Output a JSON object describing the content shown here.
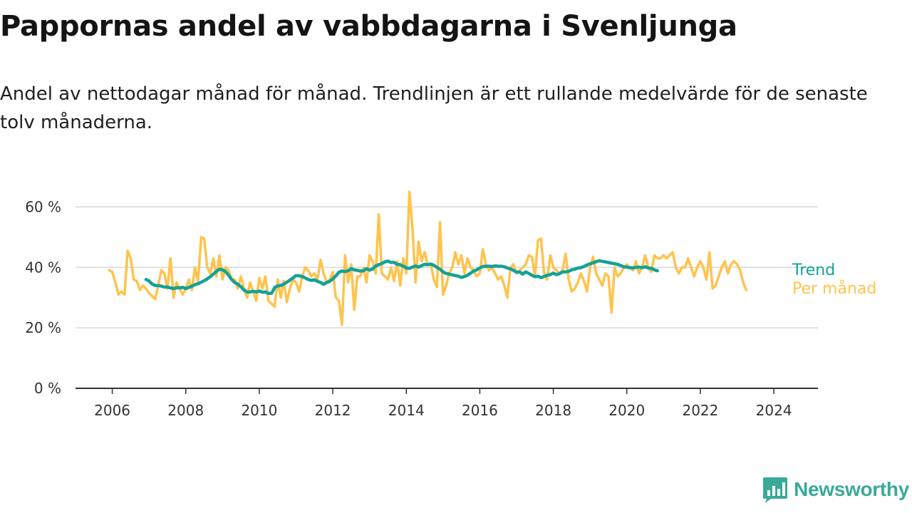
{
  "title": "Pappornas andel av vabbdagarna i Svenljunga",
  "subtitle": "Andel av nettodagar månad för månad. Trendlinjen är ett rullande medelvärde för de senaste tolv månaderna.",
  "brand": {
    "name": "Newsworthy",
    "color": "#3aa99a"
  },
  "colors": {
    "monthly": "#ffc34d",
    "trend": "#14a197",
    "grid": "#d9d9d9",
    "axis": "#333333"
  },
  "chart_data": {
    "type": "line",
    "x_unit": "year (decimal, monthly points)",
    "y_unit": "%",
    "ylim": [
      0,
      70
    ],
    "xlim": [
      2005.0,
      2025.2
    ],
    "y_ticks": [
      0,
      20,
      40,
      60
    ],
    "y_tick_labels": [
      "0 %",
      "20 %",
      "40 %",
      "60 %"
    ],
    "x_ticks": [
      2006,
      2008,
      2010,
      2012,
      2014,
      2016,
      2018,
      2020,
      2022,
      2024
    ],
    "x_tick_labels": [
      "2006",
      "2008",
      "2010",
      "2012",
      "2014",
      "2016",
      "2018",
      "2020",
      "2022",
      "2024"
    ],
    "grid": "horizontal",
    "legend": "direct labels at line ends (right)",
    "series": [
      {
        "name": "Per månad",
        "color": "#ffc34d",
        "x_start": 2005.917,
        "x_step": 0.08333,
        "values": [
          39,
          38.5,
          35,
          31,
          32,
          31,
          45.5,
          43,
          36,
          35.5,
          32.5,
          34,
          33,
          31.5,
          30.5,
          29.5,
          34,
          39,
          38,
          33,
          43,
          30,
          35,
          33,
          31,
          33,
          36,
          32.5,
          40,
          35.5,
          50,
          49.5,
          40,
          38,
          43,
          37,
          44,
          36,
          40,
          39,
          36,
          36,
          33,
          37,
          33,
          30,
          35,
          32,
          29,
          36.5,
          33,
          37,
          29,
          28,
          27,
          36,
          30,
          35.5,
          28.5,
          33,
          36,
          35,
          32,
          37,
          40,
          39,
          37,
          38,
          36,
          42.5,
          38,
          35,
          36,
          38.5,
          30,
          29,
          21,
          44,
          35,
          41,
          26,
          37,
          37,
          40,
          35,
          44,
          42,
          38,
          57.5,
          38,
          37,
          36,
          40,
          35.5,
          42,
          34,
          43,
          38,
          65,
          53,
          35,
          48.5,
          42,
          45,
          41,
          41,
          36,
          33.5,
          55,
          31,
          34,
          38,
          40,
          45,
          41,
          44,
          38,
          43,
          40,
          39,
          37,
          38,
          46,
          41,
          39,
          40,
          38,
          36,
          37,
          34,
          30,
          40,
          41,
          38,
          39,
          40,
          41,
          44,
          43.5,
          37,
          49,
          49.5,
          38,
          36,
          44,
          40,
          39,
          38,
          39,
          44.5,
          36,
          32,
          33,
          35,
          38,
          35.5,
          32,
          40,
          43.5,
          38,
          36,
          34,
          38,
          37,
          25,
          40,
          37,
          38,
          40,
          41,
          40,
          39,
          42,
          38,
          40,
          44,
          40,
          38.5,
          44,
          43,
          43,
          44,
          43,
          44,
          45,
          40,
          38,
          40,
          40,
          43,
          40,
          37,
          40,
          42,
          40,
          36,
          45,
          33,
          34,
          37,
          40,
          42,
          38,
          41,
          42,
          41,
          39,
          35,
          32.5
        ]
      },
      {
        "name": "Trend",
        "color": "#14a197",
        "x_start": 2006.917,
        "x_step": 0.08333,
        "values": [
          36,
          35.5,
          34.5,
          34,
          34,
          33.8,
          33.5,
          33.5,
          33.2,
          33,
          33.3,
          33.2,
          33.4,
          33,
          33.4,
          33.8,
          34.3,
          34.6,
          35.1,
          35.6,
          36.2,
          36.9,
          37.8,
          38.7,
          39.4,
          39.2,
          38.6,
          37.4,
          36,
          35,
          34.4,
          33.6,
          32.5,
          31.9,
          31.9,
          32.1,
          31.9,
          32.2,
          31.8,
          31.9,
          31.4,
          31.4,
          33.3,
          33.9,
          34,
          34.5,
          35.1,
          35.8,
          36.5,
          37.3,
          37.2,
          37,
          36.5,
          36,
          35.7,
          35.9,
          35.4,
          35,
          34.4,
          35,
          35.4,
          36.2,
          37.2,
          38.4,
          38.8,
          38.6,
          38.9,
          39.6,
          39.2,
          39,
          38.8,
          38.9,
          39.6,
          39.1,
          39.5,
          40.5,
          40.9,
          41.3,
          41.8,
          42.1,
          41.6,
          41.7,
          41,
          40.9,
          40.4,
          39.8,
          39.7,
          40.1,
          40.5,
          40.1,
          40.6,
          41,
          40.9,
          41.1,
          40.7,
          40,
          39.4,
          38.5,
          38,
          37.8,
          37.5,
          37.3,
          37.1,
          36.7,
          37,
          37.4,
          38.1,
          38.8,
          39.2,
          39.8,
          40.3,
          40.4,
          40.4,
          40.3,
          40.5,
          40.4,
          40.4,
          40.2,
          39.8,
          39.5,
          39,
          38.4,
          38.5,
          37.8,
          38.5,
          38,
          37.4,
          36.9,
          37.1,
          36.6,
          37,
          37.4,
          37.6,
          38.1,
          37.6,
          37.9,
          38.5,
          38.5,
          38.7,
          39.2,
          39.4,
          39.8,
          39.9,
          40.3,
          40.8,
          41.2,
          41.5,
          41.9,
          42.2,
          42,
          41.8,
          41.6,
          41.4,
          41.2,
          41,
          40.6,
          40.2,
          40.1,
          39.9,
          39.8,
          40,
          40.1,
          39.9,
          40.2,
          39.8,
          39.7,
          39.2,
          38.9
        ]
      }
    ]
  }
}
